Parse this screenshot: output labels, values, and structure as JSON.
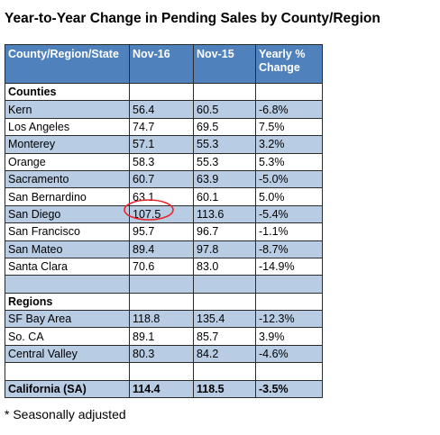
{
  "title": "Year-to-Year Change in Pending Sales by County/Region",
  "table": {
    "header": [
      "County/Region/State",
      "Nov-16",
      "Nov-15",
      "Yearly % Change"
    ],
    "sections": [
      {
        "label": "Counties",
        "rows": [
          [
            "Kern",
            "56.4",
            "60.5",
            "-6.8%"
          ],
          [
            "Los Angeles",
            "74.7",
            "69.5",
            "7.5%"
          ],
          [
            "Monterey",
            "57.1",
            "55.3",
            "3.2%"
          ],
          [
            "Orange",
            "58.3",
            "55.3",
            "5.3%"
          ],
          [
            "Sacramento",
            "60.7",
            "63.9",
            "-5.0%"
          ],
          [
            "San Bernardino",
            "63.1",
            "60.1",
            "5.0%"
          ],
          [
            "San Diego",
            "107.5",
            "113.6",
            "-5.4%"
          ],
          [
            "San Francisco",
            "95.7",
            "96.7",
            "-1.1%"
          ],
          [
            "San Mateo",
            "89.4",
            "97.8",
            "-8.7%"
          ],
          [
            "Santa Clara",
            "70.6",
            "83.0",
            "-14.9%"
          ]
        ]
      },
      {
        "label": "Regions",
        "rows": [
          [
            "SF Bay Area",
            "118.8",
            "135.4",
            "-12.3%"
          ],
          [
            "So. CA",
            "89.1",
            "85.7",
            "3.9%"
          ],
          [
            "Central Valley",
            "80.3",
            "84.2",
            "-4.6%"
          ]
        ]
      }
    ],
    "total": [
      "California (SA)",
      "114.4",
      "118.5",
      "-3.5%"
    ]
  },
  "footnote": "* Seasonally adjusted"
}
